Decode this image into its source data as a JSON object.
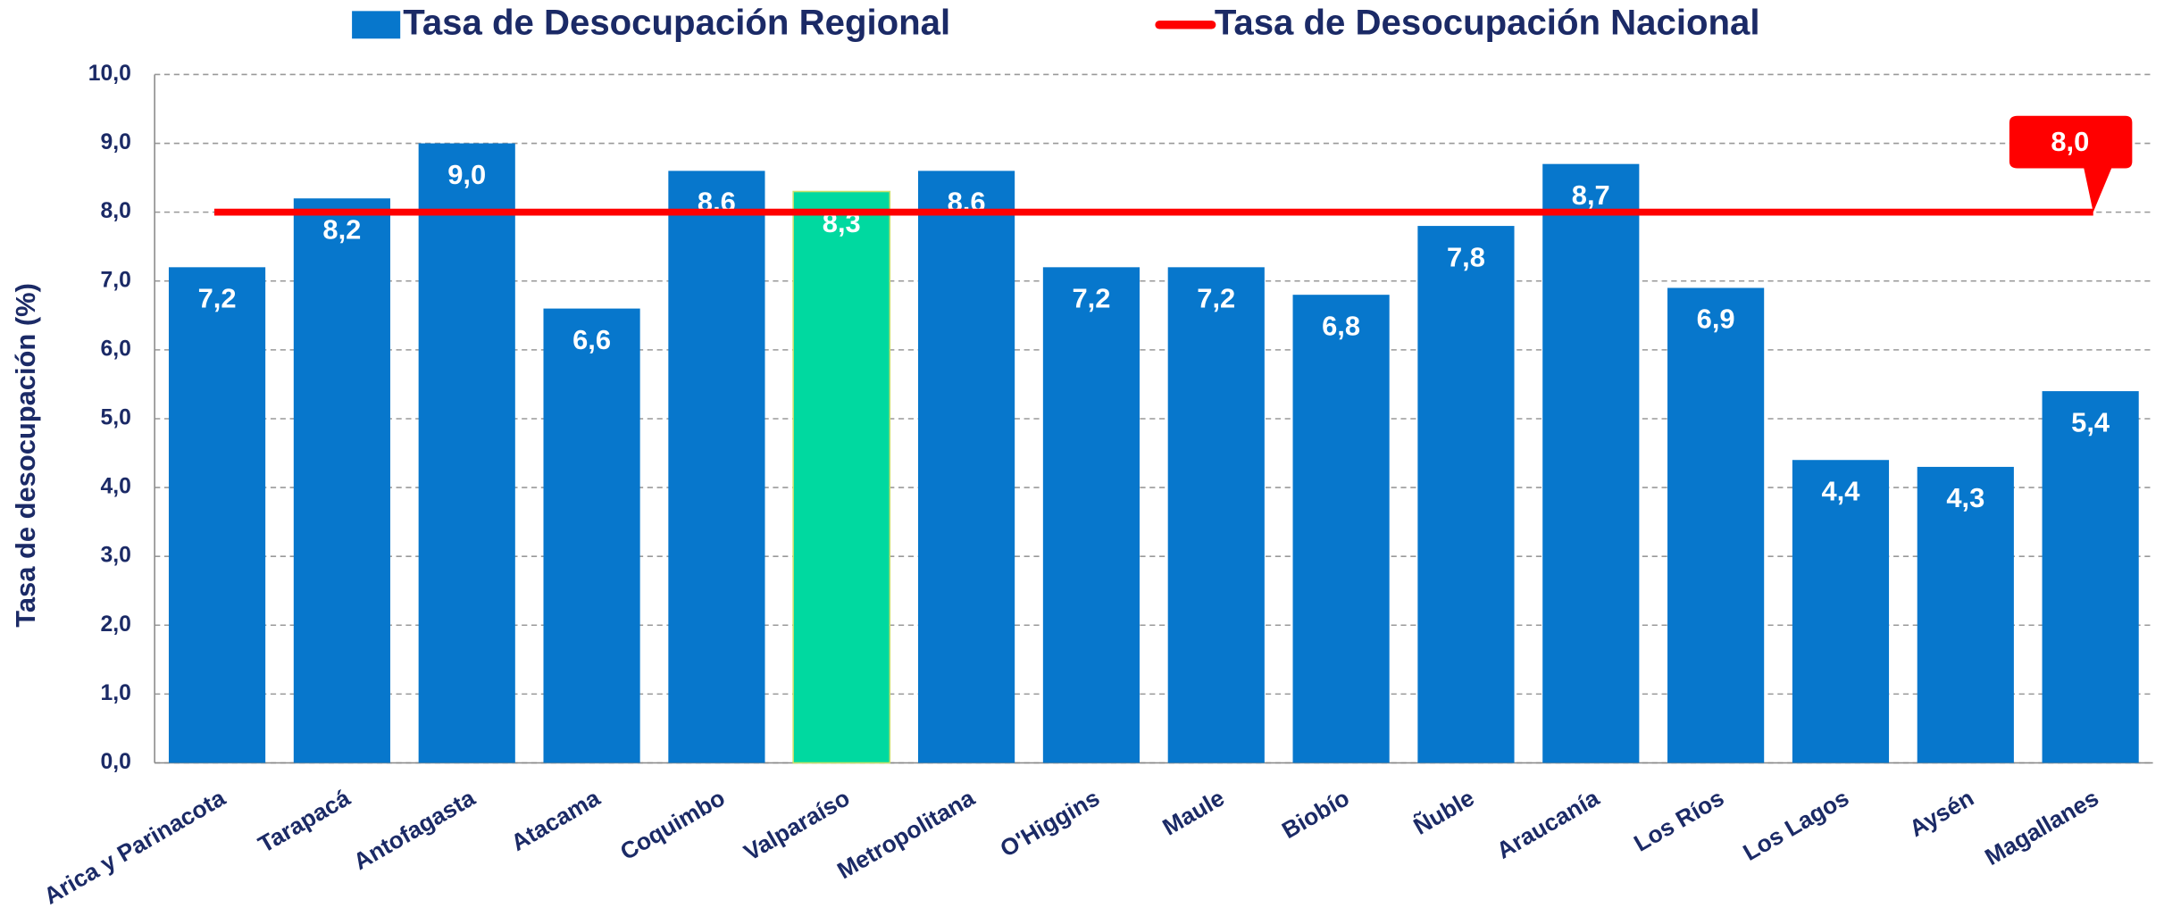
{
  "chart_data": {
    "type": "bar",
    "y_label": "Tasa de desocupación (%)",
    "categories": [
      "Arica y Parinacota",
      "Tarapacá",
      "Antofagasta",
      "Atacama",
      "Coquimbo",
      "Valparaíso",
      "Metropolitana",
      "O'Higgins",
      "Maule",
      "Biobío",
      "Ñuble",
      "Araucanía",
      "Los Ríos",
      "Los Lagos",
      "Aysén",
      "Magallanes"
    ],
    "series": [
      {
        "name": "Tasa de Desocupación Regional",
        "color": "#0777cc",
        "colors": [
          "#0777cc",
          "#0777cc",
          "#0777cc",
          "#0777cc",
          "#0777cc",
          "#00d9a0",
          "#0777cc",
          "#0777cc",
          "#0777cc",
          "#0777cc",
          "#0777cc",
          "#0777cc",
          "#0777cc",
          "#0777cc",
          "#0777cc",
          "#0777cc"
        ],
        "values": [
          7.2,
          8.2,
          9.0,
          6.6,
          8.6,
          8.3,
          8.6,
          7.2,
          7.2,
          6.8,
          7.8,
          8.7,
          6.9,
          4.4,
          4.3,
          5.4
        ],
        "value_labels": [
          "7,2",
          "8,2",
          "9,0",
          "6,6",
          "8,6",
          "8,3",
          "8,6",
          "7,2",
          "7,2",
          "6,8",
          "7,8",
          "8,7",
          "6,9",
          "4,4",
          "4,3",
          "5,4"
        ]
      }
    ],
    "reference_line": {
      "name": "Tasa de Desocupación Nacional",
      "color": "#ff0000",
      "value": 8.0,
      "label": "8,0"
    },
    "ylim": [
      0,
      10
    ],
    "yticks": [
      {
        "value": 0,
        "label": "0,0"
      },
      {
        "value": 1,
        "label": "1,0"
      },
      {
        "value": 2,
        "label": "2,0"
      },
      {
        "value": 3,
        "label": "3,0"
      },
      {
        "value": 4,
        "label": "4,0"
      },
      {
        "value": 5,
        "label": "5,0"
      },
      {
        "value": 6,
        "label": "6,0"
      },
      {
        "value": 7,
        "label": "7,0"
      },
      {
        "value": 8,
        "label": "8,0"
      },
      {
        "value": 9,
        "label": "9,0"
      },
      {
        "value": 10,
        "label": "10,0"
      }
    ],
    "grid": true
  }
}
